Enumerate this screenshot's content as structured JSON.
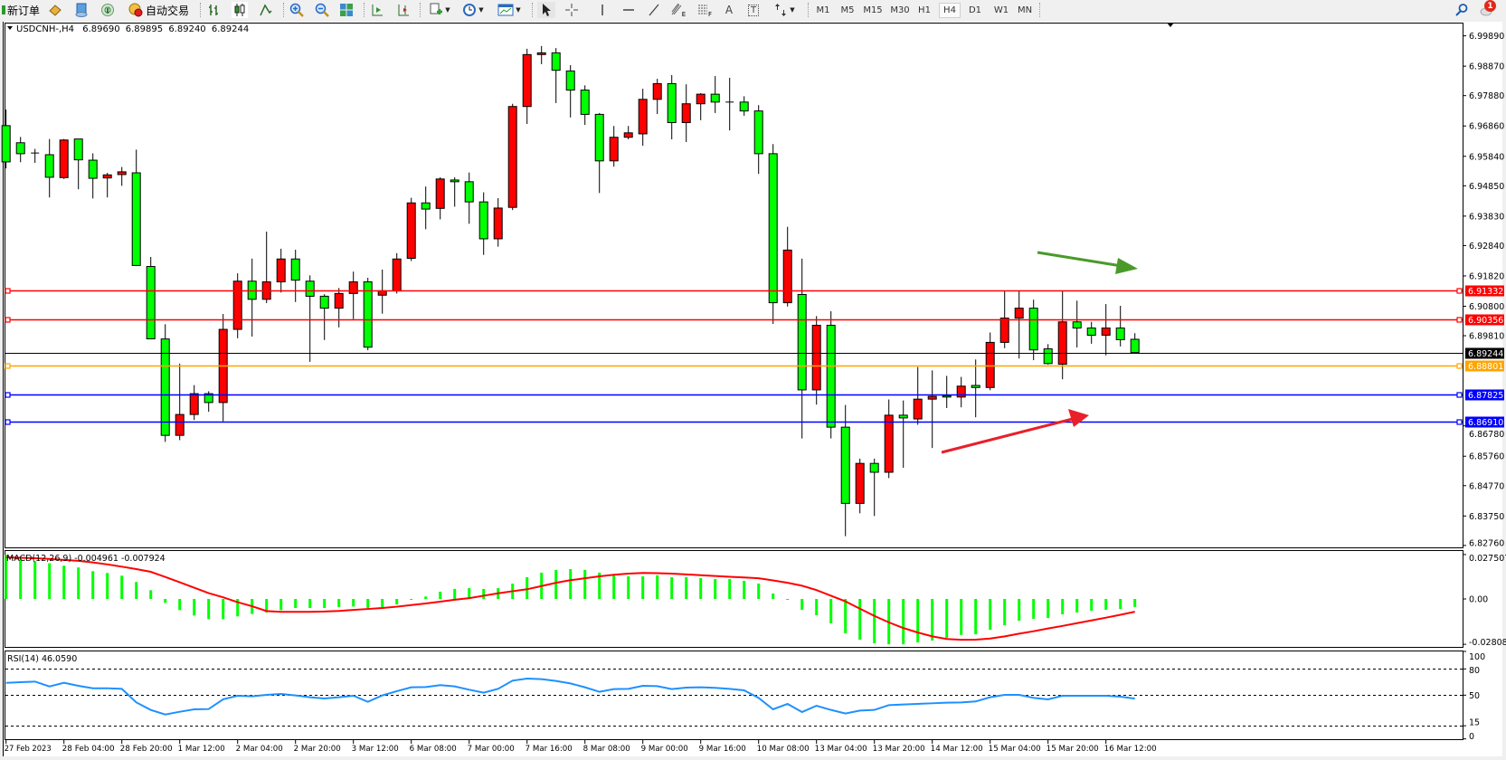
{
  "toolbar": {
    "new_order": "新订单",
    "auto_trading": "自动交易",
    "text_tool": "A",
    "label_tool": "T",
    "fibo_tool_suffix": "E",
    "fibo_lines_suffix": "F",
    "timeframes": [
      "M1",
      "M5",
      "M15",
      "M30",
      "H1",
      "H4",
      "D1",
      "W1",
      "MN"
    ],
    "selected_timeframe": "H4",
    "notification_count": "1",
    "icons": [
      "new-order-icon",
      "metaeditor-icon",
      "history-icon",
      "signals-icon",
      "auto-trading-icon",
      "bar-chart-icon",
      "candlestick-icon",
      "line-chart-icon",
      "zoom-in-icon",
      "zoom-out-icon",
      "tile-windows-icon",
      "auto-scroll-icon",
      "chart-shift-icon",
      "new-chart-icon",
      "periods-icon",
      "templates-icon",
      "cursor-icon",
      "crosshair-icon",
      "vertical-line-icon",
      "horizontal-line-icon",
      "trendline-icon",
      "fibonacci-icon",
      "fibo-lines-icon",
      "text-icon",
      "text-label-icon",
      "arrows-icon",
      "search-icon",
      "notifications-icon"
    ]
  },
  "header": {
    "symbol": "USDCNH-,H4",
    "open": "6.89690",
    "high": "6.89895",
    "low": "6.89240",
    "close": "6.89244"
  },
  "colors": {
    "bull_candle": "#ff0000",
    "bear_candle": "#00ff00",
    "macd_histogram": "#00ff00",
    "macd_signal": "#ff0000",
    "rsi_line": "#1e90ff",
    "arrow_down": "#4a9a2a",
    "arrow_up": "#e8202a"
  },
  "indicators": {
    "macd_label": "MACD(12,26,9) -0.004961 -0.007924",
    "rsi_label": "RSI(14) 46.0590"
  },
  "chart_data": {
    "type": "candlestick",
    "symbol": "USDCNH-",
    "timeframe": "H4",
    "ylim": [
      6.82695,
      7.00334
    ],
    "price_ticks": [
      "6.99890",
      "6.98870",
      "6.97880",
      "6.96860",
      "6.95840",
      "6.94850",
      "6.93830",
      "6.92840",
      "6.91820",
      "6.90800",
      "6.89810",
      "6.86780",
      "6.85760",
      "6.84770",
      "6.83750",
      "6.82760"
    ],
    "levels": [
      {
        "price": "6.91332",
        "color": "#ff0000",
        "label_text": "#ffffff"
      },
      {
        "price": "6.90356",
        "color": "#ff0000",
        "label_text": "#ffffff"
      },
      {
        "price": "6.88801",
        "color": "#ffa500",
        "label_text": "#ffffff"
      },
      {
        "price": "6.87825",
        "color": "#0000ff",
        "label_text": "#ffffff"
      },
      {
        "price": "6.86910",
        "color": "#0000ff",
        "label_text": "#ffffff"
      }
    ],
    "bid_line": {
      "price": "6.89244",
      "color": "#000000"
    },
    "candles_ohlc": [
      [
        6.96871,
        6.97411,
        6.95434,
        6.95653
      ],
      [
        6.96296,
        6.96491,
        6.95641,
        6.95928
      ],
      [
        6.95951,
        6.96089,
        6.95618,
        6.9594
      ],
      [
        6.95894,
        6.96422,
        6.94458,
        6.95136
      ],
      [
        6.95124,
        6.96422,
        6.95078,
        6.96388
      ],
      [
        6.96422,
        6.9643,
        6.94733,
        6.95722
      ],
      [
        6.9571,
        6.9594,
        6.94423,
        6.95101
      ],
      [
        6.95113,
        6.95285,
        6.94458,
        6.95216
      ],
      [
        6.95227,
        6.9548,
        6.94848,
        6.95319
      ],
      [
        6.95285,
        6.96066,
        6.92148,
        6.92171
      ],
      [
        6.92137,
        6.92458,
        6.89701,
        6.89705
      ],
      [
        6.89701,
        6.90195,
        6.86242,
        6.86461
      ],
      [
        6.86461,
        6.88874,
        6.863,
        6.87162
      ],
      [
        6.87162,
        6.8815,
        6.86978,
        6.87862
      ],
      [
        6.87862,
        6.87943,
        6.87253,
        6.87564
      ],
      [
        6.87564,
        6.9054,
        6.86932,
        6.90023
      ],
      [
        6.90023,
        6.91907,
        6.89724,
        6.91643
      ],
      [
        6.91643,
        6.92401,
        6.89781,
        6.91034
      ],
      [
        6.91034,
        6.93309,
        6.90907,
        6.9162
      ],
      [
        6.9162,
        6.92734,
        6.91263,
        6.92389
      ],
      [
        6.92389,
        6.927,
        6.90942,
        6.91677
      ],
      [
        6.91643,
        6.91838,
        6.88931,
        6.91137
      ],
      [
        6.91137,
        6.91206,
        6.89666,
        6.90735
      ],
      [
        6.90735,
        6.91413,
        6.90091,
        6.91229
      ],
      [
        6.91229,
        6.91964,
        6.90367,
        6.9162
      ],
      [
        6.9162,
        6.91758,
        6.89322,
        6.89425
      ],
      [
        6.91172,
        6.92033,
        6.90551,
        6.91321
      ],
      [
        6.91321,
        6.92585,
        6.91229,
        6.92389
      ],
      [
        6.92412,
        6.94446,
        6.92321,
        6.94274
      ],
      [
        6.94274,
        6.94825,
        6.93389,
        6.94067
      ],
      [
        6.9409,
        6.95136,
        6.93722,
        6.95078
      ],
      [
        6.95044,
        6.95136,
        6.94147,
        6.94986
      ],
      [
        6.94986,
        6.95296,
        6.93573,
        6.94308
      ],
      [
        6.94308,
        6.9463,
        6.92527,
        6.93067
      ],
      [
        6.93067,
        6.94435,
        6.92803,
        6.94101
      ],
      [
        6.94124,
        6.97606,
        6.94033,
        6.97514
      ],
      [
        6.97514,
        6.99456,
        6.96928,
        6.9926
      ],
      [
        6.9926,
        6.99548,
        6.98939,
        6.99318
      ],
      [
        6.99318,
        6.99479,
        6.97629,
        6.98732
      ],
      [
        6.98709,
        6.98904,
        6.97146,
        6.98066
      ],
      [
        6.98066,
        6.98226,
        6.96894,
        6.9725
      ],
      [
        6.9725,
        6.97296,
        6.94607,
        6.95687
      ],
      [
        6.95687,
        6.96859,
        6.95492,
        6.9648
      ],
      [
        6.9648,
        6.96859,
        6.96411,
        6.96629
      ],
      [
        6.96595,
        6.98111,
        6.96193,
        6.97755
      ],
      [
        6.97755,
        6.98445,
        6.97261,
        6.98284
      ],
      [
        6.98284,
        6.98571,
        6.96411,
        6.96974
      ],
      [
        6.96974,
        6.98261,
        6.96319,
        6.97606
      ],
      [
        6.97606,
        6.97962,
        6.97054,
        6.97928
      ],
      [
        6.97928,
        6.98537,
        6.97296,
        6.97663
      ],
      [
        6.97663,
        6.98479,
        6.9671,
        6.9766
      ],
      [
        6.97663,
        6.97859,
        6.97204,
        6.97365
      ],
      [
        6.97365,
        6.9756,
        6.9525,
        6.95928
      ],
      [
        6.95928,
        6.9625,
        6.90206,
        6.90919
      ],
      [
        6.90919,
        6.9347,
        6.90792,
        6.92688
      ],
      [
        6.91195,
        6.92401,
        6.86357,
        6.87989
      ],
      [
        6.87989,
        6.90471,
        6.87495,
        6.9016
      ],
      [
        6.9016,
        6.90631,
        6.86357,
        6.86736
      ],
      [
        6.86736,
        6.87483,
        6.83071,
        6.84174
      ],
      [
        6.84174,
        6.85679,
        6.83841,
        6.85518
      ],
      [
        6.85518,
        6.85679,
        6.83749,
        6.8522
      ],
      [
        6.8522,
        6.87667,
        6.85024,
        6.87138
      ],
      [
        6.87138,
        6.87633,
        6.85369,
        6.87047
      ],
      [
        6.87012,
        6.88758,
        6.86817,
        6.87678
      ],
      [
        6.87678,
        6.88644,
        6.86035,
        6.8777
      ],
      [
        6.87793,
        6.8846,
        6.8738,
        6.87748
      ],
      [
        6.87748,
        6.88425,
        6.87403,
        6.88115
      ],
      [
        6.88138,
        6.89011,
        6.8707,
        6.88069
      ],
      [
        6.88069,
        6.89919,
        6.87977,
        6.89586
      ],
      [
        6.89586,
        6.91309,
        6.89391,
        6.90402
      ],
      [
        6.90402,
        6.91309,
        6.89046,
        6.90735
      ],
      [
        6.90735,
        6.91022,
        6.88988,
        6.89333
      ],
      [
        6.89368,
        6.89528,
        6.88839,
        6.88874
      ],
      [
        6.88851,
        6.91309,
        6.88345,
        6.90275
      ],
      [
        6.90275,
        6.90988,
        6.89414,
        6.90068
      ],
      [
        6.90068,
        6.90275,
        6.8954,
        6.89827
      ],
      [
        6.89827,
        6.90873,
        6.89149,
        6.90068
      ],
      [
        6.90068,
        6.90815,
        6.89448,
        6.89677
      ],
      [
        6.8969,
        6.89895,
        6.8924,
        6.89244
      ]
    ],
    "time_axis": {
      "ticks": [
        {
          "label": "27 Feb 2023",
          "bar": 0
        },
        {
          "label": "28 Feb 04:00",
          "bar": 4
        },
        {
          "label": "28 Feb 20:00",
          "bar": 8
        },
        {
          "label": "1 Mar 12:00",
          "bar": 12
        },
        {
          "label": "2 Mar 04:00",
          "bar": 16
        },
        {
          "label": "2 Mar 20:00",
          "bar": 20
        },
        {
          "label": "3 Mar 12:00",
          "bar": 24
        },
        {
          "label": "6 Mar 08:00",
          "bar": 28
        },
        {
          "label": "7 Mar 00:00",
          "bar": 32
        },
        {
          "label": "7 Mar 16:00",
          "bar": 36
        },
        {
          "label": "8 Mar 08:00",
          "bar": 40
        },
        {
          "label": "9 Mar 00:00",
          "bar": 44
        },
        {
          "label": "9 Mar 16:00",
          "bar": 48
        },
        {
          "label": "10 Mar 08:00",
          "bar": 52
        },
        {
          "label": "13 Mar 04:00",
          "bar": 56
        },
        {
          "label": "13 Mar 20:00",
          "bar": 60
        },
        {
          "label": "14 Mar 12:00",
          "bar": 64
        },
        {
          "label": "15 Mar 04:00",
          "bar": 68
        },
        {
          "label": "15 Mar 20:00",
          "bar": 72
        },
        {
          "label": "16 Mar 12:00",
          "bar": 76
        }
      ]
    },
    "macd": {
      "ylim": [
        -0.0297,
        0.0297
      ],
      "axis_labels": [
        {
          "text": "0.027507",
          "value": 0.027507
        },
        {
          "text": "0.00",
          "value": 0
        },
        {
          "text": "-0.028083",
          "value": -0.028083
        }
      ],
      "histogram": [
        0.0273,
        0.0244,
        0.0234,
        0.0221,
        0.0206,
        0.0195,
        0.0172,
        0.0161,
        0.0144,
        0.0105,
        0.0054,
        -0.0024,
        -0.0069,
        -0.0103,
        -0.0125,
        -0.0125,
        -0.0108,
        -0.0093,
        -0.0084,
        -0.0069,
        -0.0056,
        -0.0056,
        -0.0056,
        -0.005,
        -0.0047,
        -0.0056,
        -0.005,
        -0.0034,
        -0.0004,
        0.0015,
        0.0045,
        0.0062,
        0.0067,
        0.0062,
        0.0067,
        0.0095,
        0.0135,
        0.0163,
        0.018,
        0.0185,
        0.018,
        0.0163,
        0.0146,
        0.014,
        0.014,
        0.0146,
        0.0135,
        0.0135,
        0.0129,
        0.0123,
        0.0123,
        0.0112,
        0.0095,
        0.0034,
        -0.0004,
        -0.0067,
        -0.0101,
        -0.0151,
        -0.0213,
        -0.0252,
        -0.0275,
        -0.0281,
        -0.0281,
        -0.0269,
        -0.0258,
        -0.0241,
        -0.0223,
        -0.0219,
        -0.0191,
        -0.0163,
        -0.0135,
        -0.0123,
        -0.0118,
        -0.0095,
        -0.0084,
        -0.0073,
        -0.0067,
        -0.0062,
        -0.004961
      ],
      "signal": [
        0.0258,
        0.0255,
        0.0252,
        0.0248,
        0.0242,
        0.0236,
        0.0226,
        0.0214,
        0.02,
        0.0185,
        0.0168,
        0.0136,
        0.0103,
        0.007,
        0.0036,
        0.001,
        -0.002,
        -0.0045,
        -0.0075,
        -0.008,
        -0.008,
        -0.008,
        -0.0078,
        -0.0074,
        -0.0068,
        -0.0062,
        -0.0056,
        -0.0048,
        -0.0038,
        -0.0028,
        -0.0017,
        -0.0005,
        0.0005,
        0.002,
        0.0035,
        0.0048,
        0.006,
        0.008,
        0.01,
        0.0116,
        0.0128,
        0.014,
        0.015,
        0.0157,
        0.0161,
        0.016,
        0.0157,
        0.0152,
        0.0147,
        0.0142,
        0.0137,
        0.0133,
        0.0128,
        0.0115,
        0.01,
        0.0082,
        0.0055,
        0.002,
        -0.0015,
        -0.006,
        -0.0105,
        -0.0145,
        -0.018,
        -0.0208,
        -0.0232,
        -0.0248,
        -0.0253,
        -0.0252,
        -0.0245,
        -0.0232,
        -0.0215,
        -0.02,
        -0.0183,
        -0.0167,
        -0.015,
        -0.0133,
        -0.0116,
        -0.0098,
        -0.007924
      ]
    },
    "rsi": {
      "period": 14,
      "ylim": [
        -1.4,
        100
      ],
      "levels": [
        80,
        50,
        15
      ],
      "axis_labels": [
        {
          "text": "100",
          "value": 100
        },
        {
          "text": "80",
          "value": 80
        },
        {
          "text": "50",
          "value": 50
        },
        {
          "text": "15",
          "value": 15
        },
        {
          "text": "0",
          "value": 0
        }
      ],
      "values": [
        64.1,
        64.8,
        65.5,
        60.0,
        64.1,
        60.7,
        57.9,
        57.9,
        57.2,
        41.7,
        33.1,
        27.9,
        31.0,
        33.8,
        34.1,
        45.2,
        49.3,
        48.6,
        50.3,
        51.4,
        49.7,
        47.6,
        46.2,
        47.6,
        49.3,
        42.4,
        49.7,
        54.5,
        59.0,
        59.3,
        61.4,
        60.0,
        56.2,
        52.8,
        57.2,
        66.6,
        69.0,
        68.3,
        66.2,
        63.4,
        59.0,
        53.8,
        56.9,
        57.2,
        60.7,
        60.3,
        56.9,
        58.6,
        59.0,
        58.3,
        57.2,
        55.5,
        46.9,
        33.8,
        40.0,
        30.7,
        37.9,
        33.1,
        29.0,
        32.4,
        33.1,
        38.6,
        39.3,
        40.0,
        40.7,
        41.4,
        41.7,
        42.8,
        47.6,
        50.3,
        50.3,
        46.9,
        45.2,
        49.3,
        49.3,
        49.3,
        49.3,
        48.3,
        46.059
      ]
    }
  }
}
